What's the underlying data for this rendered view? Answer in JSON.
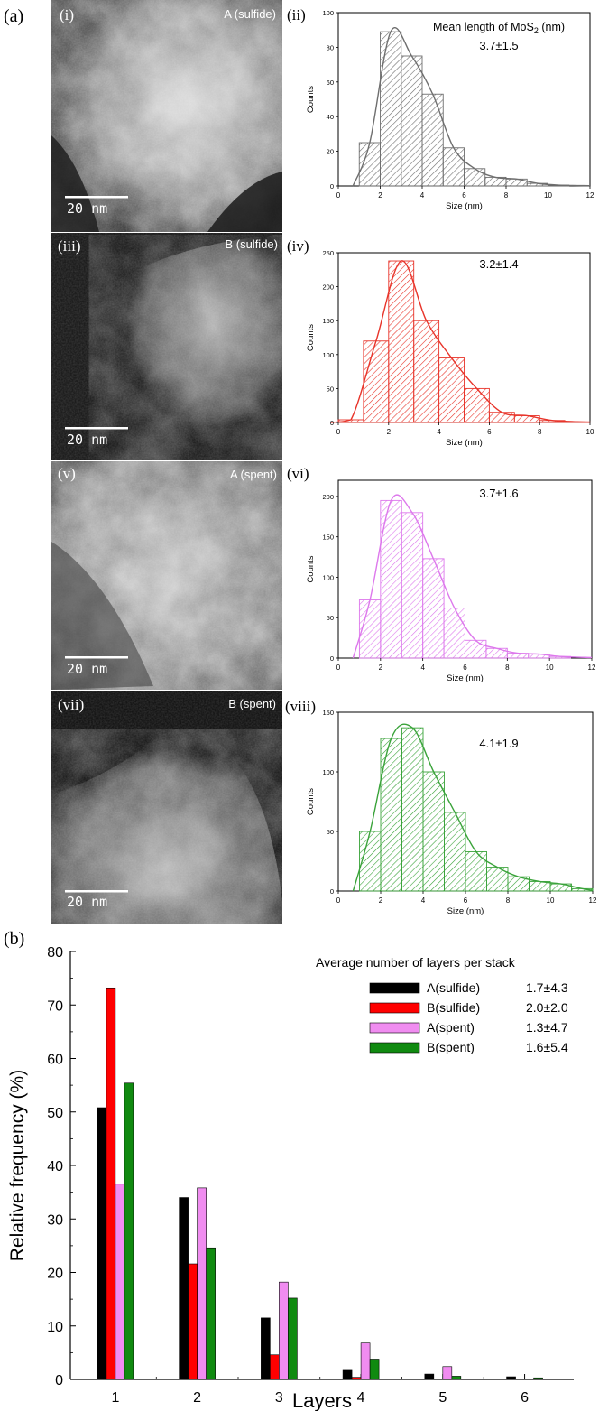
{
  "panel_a": {
    "label": "(a)",
    "images": [
      {
        "label": "(i)",
        "tag": "A (sulfide)",
        "scale": "20 nm"
      },
      {
        "label": "(iii)",
        "tag": "B (sulfide)",
        "scale": "20 nm"
      },
      {
        "label": "(v)",
        "tag": "A (spent)",
        "scale": "20 nm"
      },
      {
        "label": "(vii)",
        "tag": "B (spent)",
        "scale": "20 nm"
      }
    ]
  },
  "panel_b": {
    "label": "(b)"
  },
  "colors": {
    "black": "#000000",
    "red": "#ff0000",
    "pink": "#f08cf0",
    "green": "#108a10",
    "hist_black": "#6e6e6e",
    "hist_red": "#e8342a",
    "hist_pink": "#dd78ec",
    "hist_green": "#3aa33a"
  },
  "chart_data": [
    {
      "type": "bar",
      "panel": "(ii)",
      "title": "Mean length of MoS2 (nm)",
      "annotation": "3.7±1.5",
      "xlabel": "Size (nm)",
      "ylabel": "Counts",
      "xlim": [
        0,
        12
      ],
      "ylim": [
        0,
        100
      ],
      "xticks": [
        0,
        2,
        4,
        6,
        8,
        10,
        12
      ],
      "yticks": [
        0,
        20,
        40,
        60,
        80,
        100
      ],
      "bin_width": 1,
      "x": [
        1,
        2,
        3,
        4,
        5,
        6,
        7,
        8,
        9,
        10
      ],
      "values": [
        25,
        89,
        75,
        53,
        22,
        10,
        5,
        4,
        1.5,
        0.5
      ],
      "fit": "log-normal",
      "series_color": "hist_black"
    },
    {
      "type": "bar",
      "panel": "(iv)",
      "annotation": "3.2±1.4",
      "xlabel": "Size (nm)",
      "ylabel": "Counts",
      "xlim": [
        0,
        10
      ],
      "ylim": [
        0,
        250
      ],
      "xticks": [
        0,
        2,
        4,
        6,
        8,
        10
      ],
      "yticks": [
        0,
        50,
        100,
        150,
        200,
        250
      ],
      "bin_width": 1,
      "x": [
        0,
        1,
        2,
        3,
        4,
        5,
        6,
        7,
        8,
        9
      ],
      "values": [
        4,
        120,
        238,
        150,
        95,
        50,
        15,
        10,
        3,
        1
      ],
      "fit": "log-normal",
      "series_color": "hist_red"
    },
    {
      "type": "bar",
      "panel": "(vi)",
      "annotation": "3.7±1.6",
      "xlabel": "Size (nm)",
      "ylabel": "Counts",
      "xlim": [
        0,
        12
      ],
      "ylim": [
        0,
        220
      ],
      "xticks": [
        0,
        2,
        4,
        6,
        8,
        10,
        12
      ],
      "yticks": [
        0,
        50,
        100,
        150,
        200
      ],
      "bin_width": 1,
      "x": [
        1,
        2,
        3,
        4,
        5,
        6,
        7,
        8,
        9,
        10
      ],
      "values": [
        72,
        195,
        180,
        123,
        62,
        22,
        12,
        6,
        5,
        2
      ],
      "fit": "log-normal",
      "series_color": "hist_pink"
    },
    {
      "type": "bar",
      "panel": "(viii)",
      "annotation": "4.1±1.9",
      "xlabel": "Size (nm)",
      "ylabel": "Counts",
      "xlim": [
        0,
        12
      ],
      "ylim": [
        0,
        150
      ],
      "xticks": [
        0,
        2,
        4,
        6,
        8,
        10,
        12
      ],
      "yticks": [
        0,
        50,
        100,
        150
      ],
      "bin_width": 1,
      "x": [
        1,
        2,
        3,
        4,
        5,
        6,
        7,
        8,
        9,
        10,
        11
      ],
      "values": [
        50,
        128,
        137,
        100,
        66,
        33,
        20,
        12,
        8,
        6,
        2
      ],
      "fit": "log-normal",
      "series_color": "hist_green"
    },
    {
      "type": "bar",
      "panel": "(b)",
      "xlabel": "Layers",
      "ylabel": "Relative frequency (%)",
      "ylim": [
        0,
        80
      ],
      "yticks": [
        0,
        10,
        20,
        30,
        40,
        50,
        60,
        70,
        80
      ],
      "categories": [
        "1",
        "2",
        "3",
        "4",
        "5",
        "6"
      ],
      "legend_title": "Average number of layers per stack",
      "legend_position": "top-right",
      "series": [
        {
          "name": "A(sulfide)",
          "value_label": "1.7±4.3",
          "color": "black",
          "values": [
            50.8,
            34,
            11.5,
            1.7,
            1,
            0.5
          ]
        },
        {
          "name": "B(sulfide)",
          "value_label": "2.0±2.0",
          "color": "red",
          "values": [
            73.2,
            21.6,
            4.6,
            0.4,
            0,
            0
          ]
        },
        {
          "name": "A(spent)",
          "value_label": "1.3±4.7",
          "color": "pink",
          "values": [
            36.5,
            35.8,
            18.2,
            6.8,
            2.4,
            0
          ]
        },
        {
          "name": "B(spent)",
          "value_label": "1.6±5.4",
          "color": "green",
          "values": [
            55.4,
            24.6,
            15.2,
            3.8,
            0.6,
            0.3
          ]
        }
      ]
    }
  ]
}
